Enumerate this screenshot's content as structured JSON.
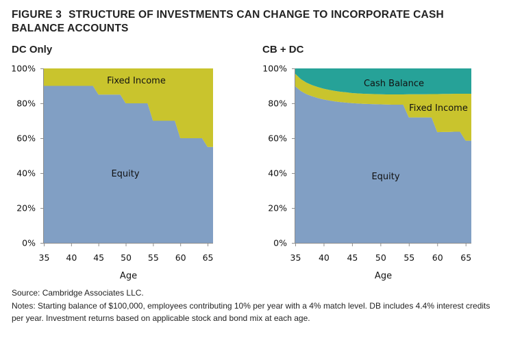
{
  "figure": {
    "number": "FIGURE 3",
    "title": "STRUCTURE OF INVESTMENTS CAN CHANGE TO INCORPORATE CASH BALANCE ACCOUNTS"
  },
  "colors": {
    "equity": "#819fc4",
    "fixed_income": "#c9c42d",
    "cash_balance": "#26a298",
    "axis": "#8c8c8c"
  },
  "chart_data": [
    {
      "type": "area",
      "stacked": true,
      "title": "DC Only",
      "xlabel": "Age",
      "ylabel": "",
      "xlim": [
        35,
        66
      ],
      "ylim": [
        0,
        100
      ],
      "x_ticks": [
        35,
        40,
        45,
        50,
        55,
        60,
        65
      ],
      "x_tick_labels": [
        "35",
        "40",
        "45",
        "50",
        "55",
        "60",
        "65"
      ],
      "y_ticks": [
        0,
        20,
        40,
        60,
        80,
        100
      ],
      "y_tick_labels": [
        "0%",
        "20%",
        "40%",
        "60%",
        "80%",
        "100%"
      ],
      "x": [
        35,
        36,
        37,
        38,
        39,
        40,
        41,
        42,
        43,
        44,
        45,
        46,
        47,
        48,
        49,
        50,
        51,
        52,
        53,
        54,
        55,
        56,
        57,
        58,
        59,
        60,
        61,
        62,
        63,
        64,
        65,
        66
      ],
      "series": [
        {
          "name": "Equity",
          "label": "Equity",
          "color_key": "equity",
          "values": [
            90,
            90,
            90,
            90,
            90,
            90,
            90,
            90,
            90,
            90,
            85,
            85,
            85,
            85,
            85,
            80,
            80,
            80,
            80,
            80,
            70,
            70,
            70,
            70,
            70,
            60,
            60,
            60,
            60,
            60,
            55,
            55
          ]
        },
        {
          "name": "Fixed Income",
          "label": "Fixed Income",
          "color_key": "fixed_income",
          "values": [
            10,
            10,
            10,
            10,
            10,
            10,
            10,
            10,
            10,
            10,
            15,
            15,
            15,
            15,
            15,
            20,
            20,
            20,
            20,
            20,
            30,
            30,
            30,
            30,
            30,
            40,
            40,
            40,
            40,
            40,
            45,
            45
          ]
        }
      ],
      "legend": "inline labels"
    },
    {
      "type": "area",
      "stacked": true,
      "title": "CB + DC",
      "xlabel": "Age",
      "ylabel": "",
      "xlim": [
        35,
        66
      ],
      "ylim": [
        0,
        100
      ],
      "x_ticks": [
        35,
        40,
        45,
        50,
        55,
        60,
        65
      ],
      "x_tick_labels": [
        "35",
        "40",
        "45",
        "50",
        "55",
        "60",
        "65"
      ],
      "y_ticks": [
        0,
        20,
        40,
        60,
        80,
        100
      ],
      "y_tick_labels": [
        "0%",
        "20%",
        "40%",
        "60%",
        "80%",
        "100%"
      ],
      "x": [
        35,
        36,
        37,
        38,
        39,
        40,
        41,
        42,
        43,
        44,
        45,
        46,
        47,
        48,
        49,
        50,
        51,
        52,
        53,
        54,
        55,
        56,
        57,
        58,
        59,
        60,
        61,
        62,
        63,
        64,
        65,
        66
      ],
      "series": [
        {
          "name": "Equity",
          "label": "Equity",
          "color_key": "equity",
          "values": [
            89.8,
            87.0,
            85.2,
            84.0,
            83.0,
            82.2,
            81.6,
            81.1,
            80.7,
            80.4,
            80.1,
            79.9,
            79.7,
            79.6,
            79.5,
            79.4,
            79.3,
            79.2,
            79.2,
            79.2,
            71.9,
            71.9,
            71.9,
            71.9,
            71.9,
            63.5,
            63.6,
            63.6,
            63.7,
            63.7,
            58.6,
            58.6
          ]
        },
        {
          "name": "Fixed Income",
          "label": "Fixed Income",
          "color_key": "fixed_income",
          "values": [
            7.1,
            6.8,
            6.6,
            6.4,
            6.3,
            6.2,
            6.1,
            6.0,
            5.9,
            5.9,
            5.8,
            5.8,
            5.8,
            5.8,
            5.8,
            5.8,
            5.8,
            5.9,
            5.9,
            5.9,
            13.3,
            13.3,
            13.3,
            13.3,
            13.4,
            21.8,
            21.8,
            21.8,
            21.8,
            21.8,
            26.9,
            26.9
          ]
        },
        {
          "name": "Cash Balance",
          "label": "Cash Balance",
          "color_key": "cash_balance",
          "values": [
            3.1,
            6.2,
            8.2,
            9.6,
            10.7,
            11.6,
            12.3,
            12.9,
            13.4,
            13.7,
            14.1,
            14.3,
            14.5,
            14.6,
            14.7,
            14.8,
            14.9,
            14.9,
            14.9,
            14.9,
            14.8,
            14.8,
            14.8,
            14.8,
            14.7,
            14.7,
            14.6,
            14.6,
            14.5,
            14.5,
            14.5,
            14.5
          ]
        }
      ],
      "legend": "inline labels"
    }
  ],
  "footer": {
    "source": "Source: Cambridge Associates LLC.",
    "notes": "Notes: Starting balance of $100,000, employees contributing 10% per year with a 4% match level. DB includes 4.4% interest credits per year. Investment returns based on applicable stock and bond mix at each age."
  }
}
